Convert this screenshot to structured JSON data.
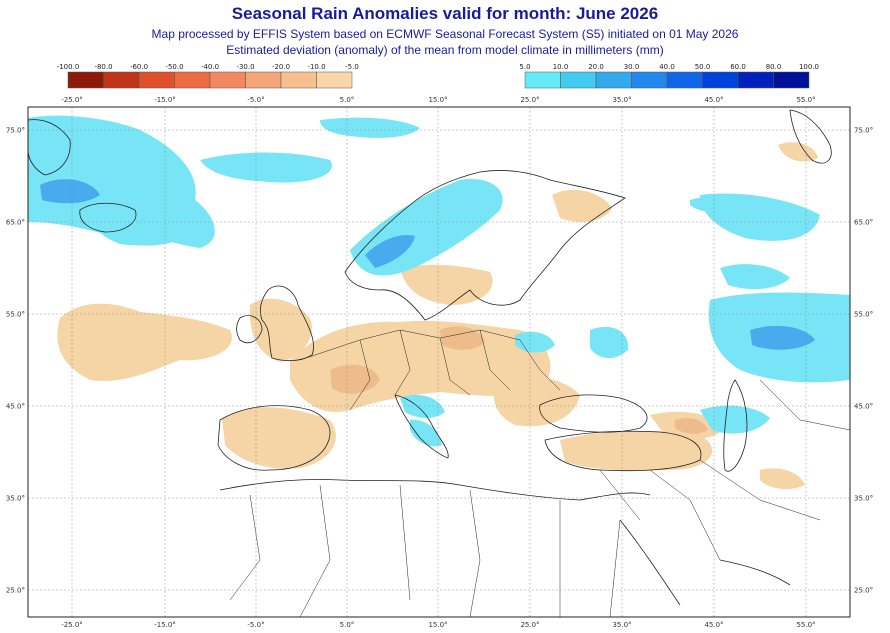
{
  "header": {
    "title": "Seasonal Rain Anomalies valid for month: June 2026",
    "subtitle1": "Map processed by EFFIS System based on ECMWF Seasonal Forecast System (S5) initiated on 01 May 2026",
    "subtitle2": "Estimated deviation (anomaly) of the mean from model climate in millimeters (mm)"
  },
  "legend_negative": {
    "labels": [
      "-100.0",
      "-80.0",
      "-60.0",
      "-50.0",
      "-40.0",
      "-30.0",
      "-20.0",
      "-10.0",
      "-5.0"
    ],
    "colors": [
      "#8b1a0a",
      "#c0341a",
      "#e0502a",
      "#ee6a42",
      "#f38860",
      "#f5a57a",
      "#f7c090",
      "#f9d7a8"
    ]
  },
  "legend_positive": {
    "labels": [
      "5.0",
      "10.0",
      "20.0",
      "30.0",
      "40.0",
      "50.0",
      "60.0",
      "80.0",
      "100.0"
    ],
    "colors": [
      "#66eaf5",
      "#44ccf0",
      "#33aaee",
      "#2288ee",
      "#1166e8",
      "#0044dd",
      "#0022bb",
      "#001199"
    ]
  },
  "map": {
    "lon_ticks": [
      "-25.0°",
      "-15.0°",
      "-5.0°",
      "5.0°",
      "15.0°",
      "25.0°",
      "35.0°",
      "45.0°",
      "55.0°"
    ],
    "lat_ticks": [
      "75.0°",
      "65.0°",
      "55.0°",
      "45.0°",
      "35.0°",
      "25.0°"
    ],
    "colors": {
      "dry": "#f5d5a5",
      "dry_strong": "#eebc8a",
      "wet": "#77e5f5",
      "wet_strong": "#55ccf0",
      "wet_deep": "#4aaaee",
      "coast": "#222222",
      "grid": "#888888"
    }
  }
}
